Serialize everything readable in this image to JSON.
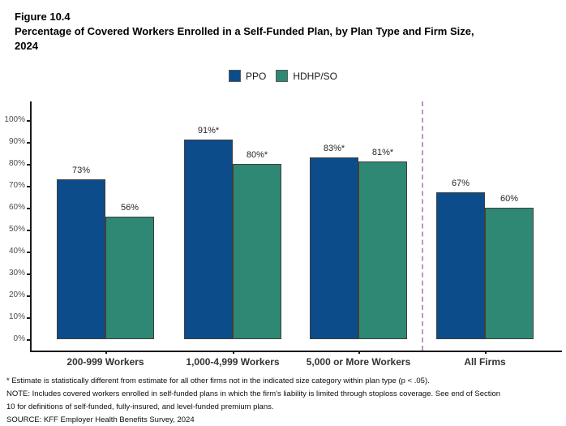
{
  "figure": {
    "label": "Figure 10.4",
    "title_lines": [
      "Percentage of Covered Workers Enrolled in a Self-Funded Plan, by Plan Type and Firm Size,",
      "2024"
    ]
  },
  "chart_data": {
    "type": "bar",
    "title": "Percentage of Covered Workers Enrolled in a Self-Funded Plan, by Plan Type and Firm Size, 2024",
    "categories": [
      "200-999 Workers",
      "1,000-4,999 Workers",
      "5,000 or More Workers",
      "All Firms"
    ],
    "series": [
      {
        "name": "PPO",
        "color": "#0c4c8a",
        "values": [
          73,
          91,
          83,
          67
        ],
        "data_labels": [
          "73%",
          "91%*",
          "83%*",
          "67%"
        ]
      },
      {
        "name": "HDHP/SO",
        "color": "#2e8873",
        "values": [
          56,
          80,
          81,
          60
        ],
        "data_labels": [
          "56%",
          "80%*",
          "81%*",
          "60%"
        ]
      }
    ],
    "xlabel": "",
    "ylabel": "",
    "ylim": [
      0,
      100
    ],
    "yticks": [
      0,
      10,
      20,
      30,
      40,
      50,
      60,
      70,
      80,
      90,
      100
    ],
    "ytick_labels": [
      "0%",
      "10%",
      "20%",
      "30%",
      "40%",
      "50%",
      "60%",
      "70%",
      "80%",
      "90%",
      "100%"
    ],
    "grid": false,
    "legend_position": "top-center",
    "separator": {
      "between": [
        "5,000 or More Workers",
        "All Firms"
      ],
      "style": "dashed",
      "color": "#ca8bcb"
    },
    "bar_border_color": "#3f3f3f",
    "axis_color": "#1a1a1a"
  },
  "footnotes": [
    "* Estimate is statistically different from estimate for all other firms not in the indicated size category within plan type (p < .05).",
    "NOTE: Includes covered workers enrolled in self-funded plans in which the firm's liability is limited through stoploss coverage. See end of Section",
    "10 for definitions of self-funded, fully-insured, and level-funded premium plans.",
    "SOURCE: KFF Employer Health Benefits Survey, 2024"
  ]
}
